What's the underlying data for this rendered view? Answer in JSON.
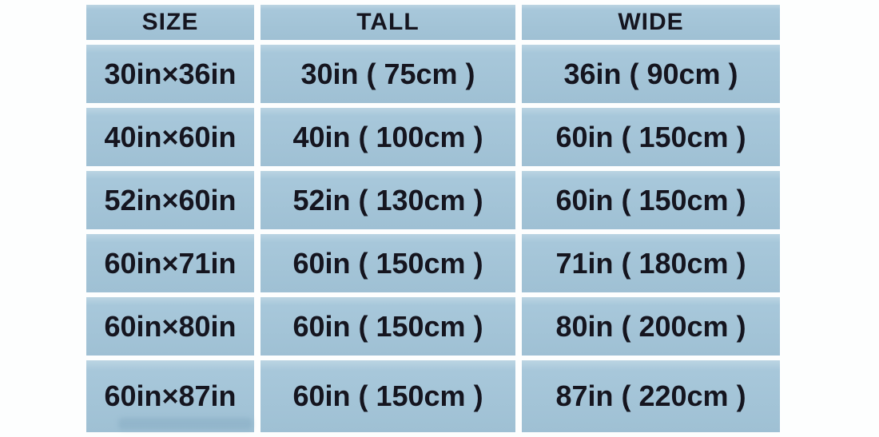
{
  "colors": {
    "cell_background": "#a2c4d8",
    "text": "#15151f",
    "gutter": "#f7fafb",
    "page_background": "#fdfefe"
  },
  "chart_data": {
    "type": "table",
    "title": "",
    "columns": [
      "SIZE",
      "TALL",
      "WIDE"
    ],
    "rows": [
      {
        "size": "30in×36in",
        "tall": "30in ( 75cm )",
        "wide": "36in ( 90cm )"
      },
      {
        "size": "40in×60in",
        "tall": "40in ( 100cm )",
        "wide": "60in ( 150cm )"
      },
      {
        "size": "52in×60in",
        "tall": "52in ( 130cm )",
        "wide": "60in ( 150cm )"
      },
      {
        "size": "60in×71in",
        "tall": "60in ( 150cm )",
        "wide": "71in ( 180cm )"
      },
      {
        "size": "60in×80in",
        "tall": "60in ( 150cm )",
        "wide": "80in ( 200cm )"
      },
      {
        "size": "60in×87in",
        "tall": "60in ( 150cm )",
        "wide": "87in ( 220cm )"
      }
    ]
  }
}
